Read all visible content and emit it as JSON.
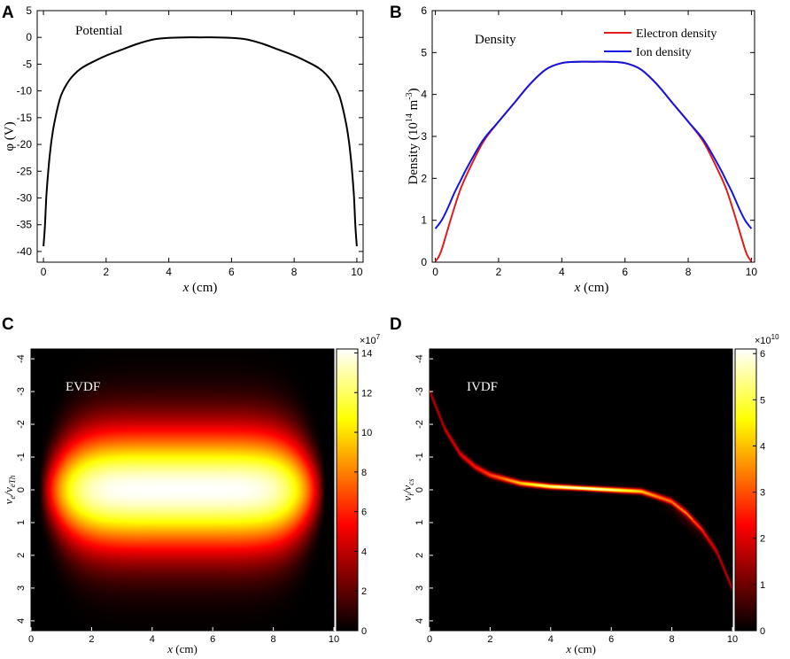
{
  "chart_data": [
    {
      "panel": "A",
      "type": "line",
      "annotation": "Potential",
      "xlabel_italic": "x",
      "xlabel_unit": " (cm)",
      "ylabel": "φ (V)",
      "xlim": [
        -0.2,
        10.2
      ],
      "ylim": [
        -42,
        5
      ],
      "xticks": [
        0,
        2,
        4,
        6,
        8,
        10
      ],
      "yticks": [
        5,
        0,
        -5,
        -10,
        -15,
        -20,
        -25,
        -30,
        -35,
        -40
      ],
      "series": [
        {
          "name": "Potential",
          "color": "#000000",
          "x": [
            0,
            0.05,
            0.1,
            0.2,
            0.3,
            0.4,
            0.5,
            0.6,
            0.8,
            1.0,
            1.2,
            1.5,
            2.0,
            2.5,
            3.0,
            3.5,
            4.0,
            4.5,
            5.0,
            5.5,
            6.0,
            6.5,
            7.0,
            7.5,
            8.0,
            8.5,
            8.8,
            9.0,
            9.2,
            9.4,
            9.5,
            9.6,
            9.7,
            9.8,
            9.9,
            9.95,
            10.0
          ],
          "y": [
            -39,
            -35,
            -29,
            -22,
            -17.5,
            -14.5,
            -12,
            -10.3,
            -8.2,
            -6.8,
            -5.8,
            -4.8,
            -3.4,
            -2.3,
            -1.2,
            -0.4,
            -0.1,
            0,
            0,
            0,
            -0.1,
            -0.4,
            -1.2,
            -2.3,
            -3.4,
            -4.8,
            -5.8,
            -6.8,
            -8.2,
            -10.3,
            -12,
            -14.5,
            -17.5,
            -22,
            -29,
            -35,
            -39
          ]
        }
      ]
    },
    {
      "panel": "B",
      "type": "line",
      "annotation": "Density",
      "xlabel_italic": "x",
      "xlabel_unit": " (cm)",
      "ylabel": "Density (10",
      "ylabel_exp1": "14",
      "ylabel_mid": " m",
      "ylabel_exp2": "-3",
      "ylabel_end": ")",
      "xlim": [
        -0.1,
        10.1
      ],
      "ylim": [
        0,
        6
      ],
      "xticks": [
        0,
        2,
        4,
        6,
        8,
        10
      ],
      "yticks": [
        0,
        1,
        2,
        3,
        4,
        5,
        6
      ],
      "series": [
        {
          "name": "Electron density",
          "color": "#e01b1b",
          "x": [
            0,
            0.1,
            0.2,
            0.4,
            0.6,
            0.8,
            1.0,
            1.5,
            2.0,
            2.5,
            3.0,
            3.5,
            4.0,
            4.5,
            5.0,
            5.5,
            6.0,
            6.5,
            7.0,
            7.5,
            8.0,
            8.5,
            9.0,
            9.2,
            9.4,
            9.6,
            9.8,
            9.9,
            10.0
          ],
          "y": [
            0.02,
            0.12,
            0.3,
            0.8,
            1.3,
            1.75,
            2.1,
            2.85,
            3.35,
            3.8,
            4.25,
            4.6,
            4.75,
            4.78,
            4.78,
            4.78,
            4.75,
            4.6,
            4.25,
            3.8,
            3.35,
            2.85,
            2.1,
            1.75,
            1.3,
            0.8,
            0.3,
            0.12,
            0.02
          ]
        },
        {
          "name": "Ion density",
          "color": "#1515e0",
          "x": [
            0,
            0.2,
            0.4,
            0.6,
            0.8,
            1.0,
            1.5,
            2.0,
            2.5,
            3.0,
            3.5,
            4.0,
            4.5,
            5.0,
            5.5,
            6.0,
            6.5,
            7.0,
            7.5,
            8.0,
            8.5,
            9.0,
            9.2,
            9.4,
            9.6,
            9.8,
            10.0
          ],
          "y": [
            0.8,
            1.0,
            1.3,
            1.65,
            1.95,
            2.25,
            2.9,
            3.35,
            3.8,
            4.25,
            4.6,
            4.75,
            4.78,
            4.78,
            4.78,
            4.75,
            4.6,
            4.25,
            3.8,
            3.35,
            2.9,
            2.25,
            1.95,
            1.65,
            1.3,
            1.0,
            0.8
          ]
        }
      ]
    },
    {
      "panel": "C",
      "type": "heatmap",
      "annotation": "EVDF",
      "xlabel_italic": "x",
      "xlabel_unit": " (cm)",
      "ylabel_main": "v",
      "ylabel_sub1": "e",
      "ylabel_slash": "/v",
      "ylabel_sub2": "eTh",
      "xlim": [
        0,
        10
      ],
      "ylim": [
        4.3,
        -4.3
      ],
      "xticks": [
        0,
        2,
        4,
        6,
        8,
        10
      ],
      "yticks": [
        -4,
        -3,
        -2,
        -1,
        0,
        1,
        2,
        3,
        4
      ],
      "colorbar_min": 0,
      "colorbar_max": 14.2,
      "colorbar_ticks": [
        0,
        2,
        4,
        6,
        8,
        10,
        12,
        14
      ],
      "colorbar_multiplier": "×10",
      "colorbar_exponent": "7",
      "peak_x": 5.0,
      "peak_v": 0.0
    },
    {
      "panel": "D",
      "type": "heatmap",
      "annotation": "IVDF",
      "xlabel_italic": "x",
      "xlabel_unit": " (cm)",
      "ylabel_main": "v",
      "ylabel_sub1": "i",
      "ylabel_slash": "/v",
      "ylabel_sub2": "cs",
      "xlim": [
        0,
        10
      ],
      "ylim": [
        4.3,
        -4.3
      ],
      "xticks": [
        0,
        2,
        4,
        6,
        8,
        10
      ],
      "yticks": [
        -4,
        -3,
        -2,
        -1,
        0,
        1,
        2,
        3,
        4
      ],
      "colorbar_min": 0,
      "colorbar_max": 6.1,
      "colorbar_ticks": [
        0,
        1,
        2,
        3,
        4,
        5,
        6
      ],
      "colorbar_multiplier": "×10",
      "colorbar_exponent": "10",
      "beam_x": [
        0,
        0.5,
        1.0,
        1.5,
        2.0,
        3.0,
        4.0,
        5.0,
        6.0,
        7.0,
        8.0,
        8.5,
        9.0,
        9.5,
        10.0
      ],
      "beam_v": [
        -3.0,
        -1.85,
        -1.1,
        -0.7,
        -0.45,
        -0.2,
        -0.1,
        -0.05,
        0.0,
        0.05,
        0.35,
        0.7,
        1.2,
        1.9,
        3.0
      ]
    }
  ]
}
